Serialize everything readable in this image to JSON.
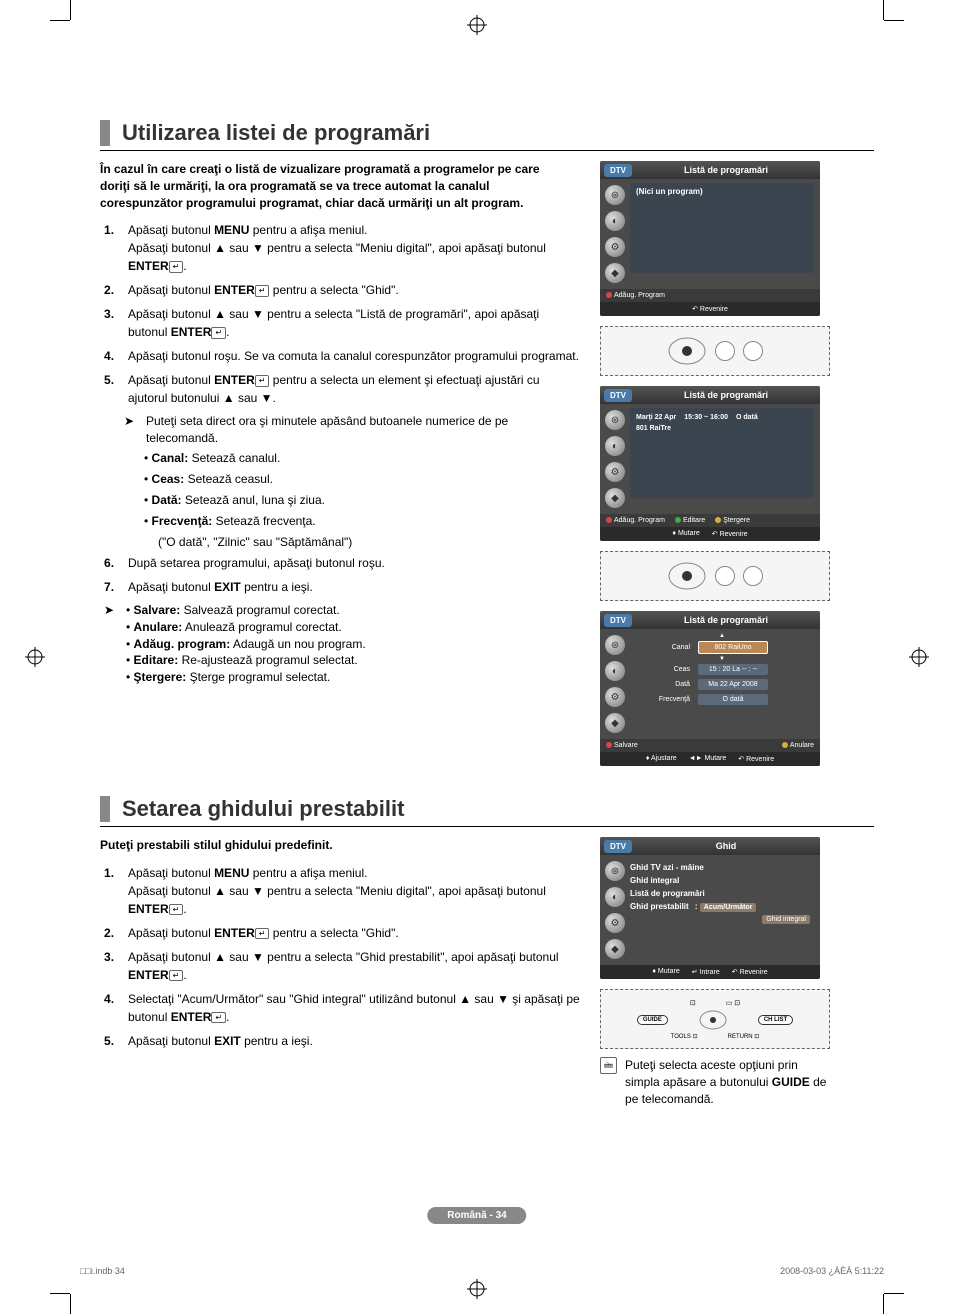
{
  "section1": {
    "title": "Utilizarea listei de programări",
    "intro": "În cazul în care creaţi o listă de vizualizare programată a programelor pe care doriţi să le urmăriţi, la ora programată se va trece automat la canalul corespunzător programului programat, chiar dacă urmăriţi un alt program.",
    "steps": [
      "Apăsaţi butonul <b>MENU</b> pentru a afişa meniul.<br>Apăsaţi butonul ▲ sau ▼ pentru a selecta \"Meniu digital\", apoi apăsaţi butonul <b>ENTER</b><span class=\"enter-icon\">↵</span>.",
      "Apăsaţi butonul <b>ENTER</b><span class=\"enter-icon\">↵</span> pentru a selecta \"Ghid\".",
      "Apăsaţi butonul ▲ sau ▼ pentru a selecta \"Listă de programări\", apoi apăsaţi butonul <b>ENTER</b><span class=\"enter-icon\">↵</span>.",
      "Apăsaţi butonul roşu. Se va comuta la canalul corespunzător programului programat.",
      "Apăsaţi butonul <b>ENTER</b><span class=\"enter-icon\">↵</span> pentru a selecta un element şi efectuaţi ajustări cu ajutorul butonului ▲ sau ▼.",
      "După setarea programului, apăsaţi butonul roşu.",
      "Apăsaţi butonul <b>EXIT</b> pentru a ieşi."
    ],
    "note5": "Puteţi seta direct ora şi minutele apăsând butoanele numerice de pe telecomandă.",
    "canal": "<b>Canal:</b> Setează canalul.",
    "ceas": "<b>Ceas:</b> Setează ceasul.",
    "data": "<b>Dată:</b> Setează anul, luna şi ziua.",
    "frecventa": "<b>Frecvenţă:</b> Setează frecvenţa.",
    "frecventaOpts": "(\"O dată\", \"Zilnic\" sau \"Săptămânal\")",
    "salvare": "<b>Salvare:</b> Salvează programul corectat.",
    "anulare": "<b>Anulare:</b> Anulează programul corectat.",
    "adaug": "<b>Adăug. program:</b> Adaugă un nou program.",
    "editare": "<b>Editare:</b> Re-ajustează programul selectat.",
    "stergere": "<b>Ştergere:</b> Şterge programul selectat."
  },
  "section2": {
    "title": "Setarea ghidului prestabilit",
    "intro": "Puteţi prestabili stilul ghidului predefinit.",
    "steps": [
      "Apăsaţi butonul <b>MENU</b> pentru a afişa meniul.<br>Apăsaţi butonul ▲ sau ▼ pentru a selecta \"Meniu digital\", apoi apăsaţi butonul <b>ENTER</b><span class=\"enter-icon\">↵</span>.",
      "Apăsaţi butonul <b>ENTER</b><span class=\"enter-icon\">↵</span> pentru a selecta \"Ghid\".",
      "Apăsaţi butonul ▲ sau ▼ pentru a selecta \"Ghid prestabilit\", apoi apăsaţi butonul <b>ENTER</b><span class=\"enter-icon\">↵</span>.",
      "Selectaţi \"Acum/Următor\" sau \"Ghid integral\" utilizând butonul ▲ sau ▼ şi apăsaţi pe butonul <b>ENTER</b><span class=\"enter-icon\">↵</span>.",
      "Apăsaţi butonul <b>EXIT</b> pentru a ieşi."
    ],
    "toolsNote": "Puteţi selecta aceste opţiuni prin simpla apăsare a butonului <b>GUIDE</b> de pe telecomandă."
  },
  "tv1": {
    "dtv": "DTV",
    "title": "Listă de programări",
    "empty": "(Nici un program)",
    "footer1": "Adăug. Program",
    "footer2": "Revenire"
  },
  "tv2": {
    "dtv": "DTV",
    "title": "Listă de programări",
    "row1a": "Marţi  22  Apr",
    "row1b": "15:30 ~ 16:00",
    "row1c": "O dată",
    "row2": "801  RaiTre",
    "f1": "Adăug. Program",
    "f2": "Editare",
    "f3": "Ştergere",
    "f4": "Mutare",
    "f5": "Revenire"
  },
  "tv3": {
    "dtv": "DTV",
    "title": "Listă de programări",
    "canalLabel": "Canal",
    "canalVal": "802 RaiUno",
    "ceasLabel": "Ceas",
    "ceasVal": "15 : 20 La -- : --",
    "dataLabel": "Dată",
    "dataVal": "Ma 22 Apr 2008",
    "frecLabel": "Frecvenţă",
    "frecVal": "O dată",
    "salvare": "Salvare",
    "anulare": "Anulare",
    "ajustare": "Ajustare",
    "mutare": "Mutare",
    "revenire": "Revenire"
  },
  "tv4": {
    "dtv": "DTV",
    "title": "Ghid",
    "m1": "Ghid TV azi - mâine",
    "m2": "Ghid integral",
    "m3": "Listă de programări",
    "m4": "Ghid prestabilit",
    "opt1": "Acum/Următor",
    "opt2": "Ghid integral",
    "f1": "Mutare",
    "f2": "Intrare",
    "f3": "Revenire"
  },
  "remote": {
    "guide": "GUIDE",
    "chlist": "CH LIST",
    "tools": "TOOLS",
    "return": "RETURN"
  },
  "footer": {
    "pill": "Română - 34",
    "left": "□□i.indb   34",
    "right": "2008-03-03   ¿ÀÈÄ 5:11:22"
  }
}
